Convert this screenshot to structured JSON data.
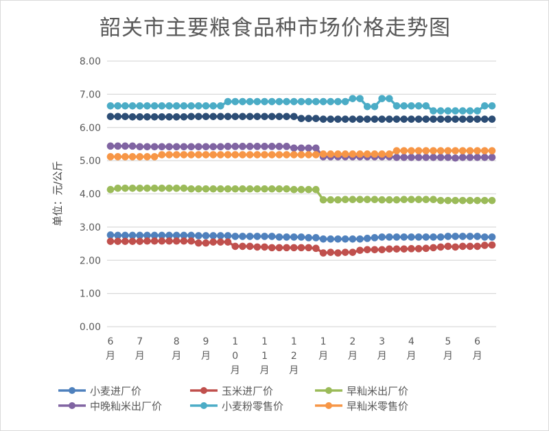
{
  "chart_data": {
    "type": "line",
    "title": "韶关市主要粮食品种市场价格走势图",
    "ylabel": "单位：元/公斤",
    "xlabel": "",
    "ylim": [
      0,
      8
    ],
    "yticks": [
      "0.00",
      "1.00",
      "2.00",
      "3.00",
      "4.00",
      "5.00",
      "6.00",
      "7.00",
      "8.00"
    ],
    "grid": true,
    "legend_position": "bottom",
    "x_tick_labels": [
      {
        "index": 0,
        "label": "6月"
      },
      {
        "index": 4,
        "label": "7月"
      },
      {
        "index": 9,
        "label": "8月"
      },
      {
        "index": 13,
        "label": "9月"
      },
      {
        "index": 17,
        "label": "10月"
      },
      {
        "index": 21,
        "label": "11月"
      },
      {
        "index": 25,
        "label": "12月"
      },
      {
        "index": 29,
        "label": "1月"
      },
      {
        "index": 33,
        "label": "2月"
      },
      {
        "index": 37,
        "label": "3月"
      },
      {
        "index": 41,
        "label": "4月"
      },
      {
        "index": 46,
        "label": "5月"
      },
      {
        "index": 50,
        "label": "6月"
      }
    ],
    "series": [
      {
        "name": "小麦进厂价",
        "color": "#4f81bd",
        "values": [
          2.76,
          2.75,
          2.75,
          2.75,
          2.75,
          2.75,
          2.75,
          2.75,
          2.75,
          2.75,
          2.75,
          2.75,
          2.74,
          2.74,
          2.74,
          2.74,
          2.74,
          2.72,
          2.72,
          2.72,
          2.72,
          2.72,
          2.72,
          2.7,
          2.7,
          2.7,
          2.7,
          2.68,
          2.68,
          2.64,
          2.64,
          2.64,
          2.64,
          2.64,
          2.64,
          2.66,
          2.68,
          2.7,
          2.7,
          2.7,
          2.7,
          2.7,
          2.7,
          2.7,
          2.7,
          2.7,
          2.72,
          2.72,
          2.72,
          2.72,
          2.72,
          2.7,
          2.7
        ]
      },
      {
        "name": "玉米进厂价",
        "color": "#c0504d",
        "values": [
          2.57,
          2.57,
          2.57,
          2.57,
          2.57,
          2.58,
          2.58,
          2.58,
          2.58,
          2.58,
          2.58,
          2.58,
          2.52,
          2.52,
          2.55,
          2.55,
          2.55,
          2.42,
          2.42,
          2.42,
          2.4,
          2.4,
          2.38,
          2.38,
          2.38,
          2.38,
          2.38,
          2.38,
          2.36,
          2.22,
          2.24,
          2.22,
          2.24,
          2.24,
          2.3,
          2.32,
          2.32,
          2.32,
          2.34,
          2.34,
          2.34,
          2.35,
          2.35,
          2.36,
          2.38,
          2.4,
          2.42,
          2.4,
          2.42,
          2.42,
          2.42,
          2.45,
          2.46
        ]
      },
      {
        "name": "早籼米出厂价",
        "color": "#9bbb59",
        "values": [
          4.13,
          4.17,
          4.17,
          4.17,
          4.17,
          4.17,
          4.17,
          4.17,
          4.17,
          4.17,
          4.17,
          4.15,
          4.15,
          4.15,
          4.15,
          4.15,
          4.15,
          4.15,
          4.15,
          4.15,
          4.15,
          4.15,
          4.15,
          4.15,
          4.15,
          4.13,
          4.13,
          4.13,
          4.13,
          3.82,
          3.82,
          3.82,
          3.83,
          3.83,
          3.83,
          3.83,
          3.83,
          3.82,
          3.82,
          3.82,
          3.83,
          3.83,
          3.83,
          3.83,
          3.83,
          3.8,
          3.8,
          3.8,
          3.8,
          3.8,
          3.8,
          3.8,
          3.8
        ]
      },
      {
        "name": "中晚籼米出厂价",
        "color": "#8064a2",
        "values": [
          5.44,
          5.44,
          5.44,
          5.44,
          5.42,
          5.42,
          5.42,
          5.42,
          5.42,
          5.42,
          5.42,
          5.42,
          5.42,
          5.42,
          5.42,
          5.42,
          5.43,
          5.43,
          5.43,
          5.43,
          5.43,
          5.43,
          5.43,
          5.43,
          5.43,
          5.38,
          5.38,
          5.38,
          5.38,
          5.12,
          5.12,
          5.12,
          5.12,
          5.12,
          5.12,
          5.12,
          5.12,
          5.12,
          5.12,
          5.1,
          5.1,
          5.1,
          5.1,
          5.1,
          5.1,
          5.1,
          5.1,
          5.08,
          5.1,
          5.1,
          5.1,
          5.1,
          5.1
        ]
      },
      {
        "name": "小麦粉零售价",
        "color": "#4bacc6",
        "values": [
          6.65,
          6.65,
          6.65,
          6.65,
          6.65,
          6.65,
          6.65,
          6.65,
          6.65,
          6.65,
          6.65,
          6.65,
          6.65,
          6.65,
          6.65,
          6.65,
          6.78,
          6.78,
          6.78,
          6.78,
          6.78,
          6.78,
          6.78,
          6.78,
          6.78,
          6.78,
          6.78,
          6.78,
          6.78,
          6.78,
          6.78,
          6.78,
          6.78,
          6.87,
          6.87,
          6.63,
          6.63,
          6.87,
          6.87,
          6.65,
          6.65,
          6.65,
          6.65,
          6.65,
          6.5,
          6.5,
          6.5,
          6.5,
          6.5,
          6.5,
          6.5,
          6.65,
          6.65
        ]
      },
      {
        "name": "早籼米零售价",
        "color": "#f79646",
        "values": [
          5.12,
          5.12,
          5.12,
          5.12,
          5.12,
          5.12,
          5.12,
          5.18,
          5.18,
          5.18,
          5.18,
          5.18,
          5.18,
          5.18,
          5.18,
          5.18,
          5.18,
          5.18,
          5.18,
          5.18,
          5.18,
          5.18,
          5.18,
          5.18,
          5.18,
          5.18,
          5.18,
          5.18,
          5.18,
          5.2,
          5.2,
          5.2,
          5.2,
          5.2,
          5.2,
          5.2,
          5.2,
          5.2,
          5.2,
          5.3,
          5.3,
          5.3,
          5.3,
          5.3,
          5.3,
          5.3,
          5.3,
          5.3,
          5.3,
          5.3,
          5.3,
          5.3,
          5.3
        ]
      },
      {
        "color": "#2c4d75",
        "values": [
          6.33,
          6.33,
          6.33,
          6.32,
          6.32,
          6.32,
          6.32,
          6.32,
          6.32,
          6.32,
          6.32,
          6.33,
          6.33,
          6.33,
          6.33,
          6.33,
          6.33,
          6.33,
          6.33,
          6.33,
          6.33,
          6.33,
          6.33,
          6.33,
          6.33,
          6.33,
          6.27,
          6.27,
          6.27,
          6.25,
          6.25,
          6.25,
          6.25,
          6.25,
          6.25,
          6.25,
          6.25,
          6.25,
          6.25,
          6.25,
          6.25,
          6.25,
          6.25,
          6.25,
          6.25,
          6.25,
          6.25,
          6.25,
          6.25,
          6.25,
          6.25,
          6.25,
          6.25
        ]
      }
    ]
  }
}
